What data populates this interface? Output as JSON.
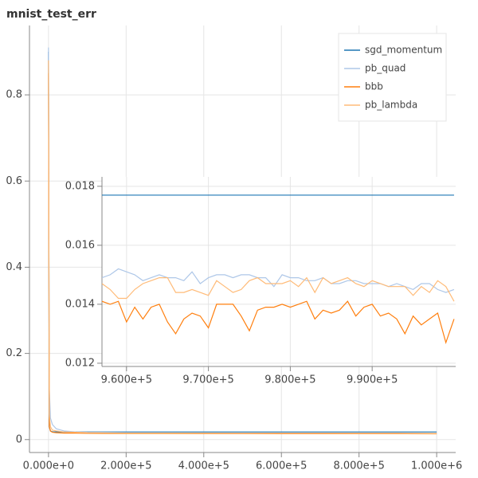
{
  "chart_data": [
    {
      "type": "line",
      "title": "mnist_test_err",
      "x": [
        0,
        2000,
        5000,
        10000,
        20000,
        40000,
        70000,
        100000,
        200000,
        300000,
        400000,
        500000,
        600000,
        700000,
        800000,
        900000,
        1000000
      ],
      "series": [
        {
          "name": "sgd_momentum",
          "color": "#1f77b4",
          "values": [
            0.9,
            0.03,
            0.02,
            0.018,
            0.018,
            0.0178,
            0.0178,
            0.0177,
            0.0177,
            0.0177,
            0.0177,
            0.0177,
            0.0177,
            0.0177,
            0.0177,
            0.0177,
            0.0177
          ]
        },
        {
          "name": "pb_quad",
          "color": "#aec7e8",
          "values": [
            0.91,
            0.12,
            0.05,
            0.035,
            0.025,
            0.02,
            0.018,
            0.017,
            0.016,
            0.0155,
            0.0152,
            0.0151,
            0.015,
            0.015,
            0.015,
            0.015,
            0.0145
          ]
        },
        {
          "name": "bbb",
          "color": "#ff7f0e",
          "values": [
            0.85,
            0.03,
            0.02,
            0.017,
            0.016,
            0.015,
            0.015,
            0.0145,
            0.014,
            0.014,
            0.0138,
            0.0138,
            0.0137,
            0.0137,
            0.0136,
            0.0136,
            0.0135
          ]
        },
        {
          "name": "pb_lambda",
          "color": "#ffbb78",
          "values": [
            0.88,
            0.06,
            0.03,
            0.022,
            0.02,
            0.018,
            0.017,
            0.016,
            0.015,
            0.015,
            0.0148,
            0.0147,
            0.0147,
            0.0147,
            0.0146,
            0.0146,
            0.0141
          ]
        }
      ],
      "xlim": [
        -49000,
        1049000
      ],
      "ylim": [
        -0.03,
        0.961
      ],
      "xticks": [
        {
          "value": 0,
          "label": "0.000e+0"
        },
        {
          "value": 200000,
          "label": "2.000e+5"
        },
        {
          "value": 400000,
          "label": "4.000e+5"
        },
        {
          "value": 600000,
          "label": "6.000e+5"
        },
        {
          "value": 800000,
          "label": "8.000e+5"
        },
        {
          "value": 1000000,
          "label": "1.000e+6"
        }
      ],
      "yticks": [
        0,
        0.2,
        0.4,
        0.6,
        0.8
      ],
      "grid": true,
      "legend": "top-right"
    },
    {
      "type": "line",
      "x": [
        957000,
        958000,
        959000,
        960000,
        961000,
        962000,
        963000,
        964000,
        965000,
        966000,
        967000,
        968000,
        969000,
        970000,
        971000,
        972000,
        973000,
        974000,
        975000,
        976000,
        977000,
        978000,
        979000,
        980000,
        981000,
        982000,
        983000,
        984000,
        985000,
        986000,
        987000,
        988000,
        989000,
        990000,
        991000,
        992000,
        993000,
        994000,
        995000,
        996000,
        997000,
        998000,
        999000,
        1000000
      ],
      "series": [
        {
          "color": "#1f77b4",
          "values": [
            0.0177,
            0.0177,
            0.0177,
            0.0177,
            0.0177,
            0.0177,
            0.0177,
            0.0177,
            0.0177,
            0.0177,
            0.0177,
            0.0177,
            0.0177,
            0.0177,
            0.0177,
            0.0177,
            0.0177,
            0.0177,
            0.0177,
            0.0177,
            0.0177,
            0.0177,
            0.0177,
            0.0177,
            0.0177,
            0.0177,
            0.0177,
            0.0177,
            0.0177,
            0.0177,
            0.0177,
            0.0177,
            0.0177,
            0.0177,
            0.0177,
            0.0177,
            0.0177,
            0.0177,
            0.0177,
            0.0177,
            0.0177,
            0.0177,
            0.0177,
            0.0177
          ]
        },
        {
          "color": "#aec7e8",
          "values": [
            0.0149,
            0.015,
            0.0152,
            0.0151,
            0.015,
            0.0148,
            0.0149,
            0.015,
            0.0149,
            0.0149,
            0.0148,
            0.0151,
            0.0147,
            0.0149,
            0.015,
            0.015,
            0.0149,
            0.015,
            0.015,
            0.0149,
            0.0149,
            0.0146,
            0.015,
            0.0149,
            0.0149,
            0.0148,
            0.0148,
            0.0149,
            0.0147,
            0.0147,
            0.0148,
            0.0148,
            0.0147,
            0.0147,
            0.0147,
            0.0146,
            0.0147,
            0.0146,
            0.0145,
            0.0147,
            0.0147,
            0.0145,
            0.0144,
            0.0145
          ]
        },
        {
          "color": "#ff7f0e",
          "values": [
            0.0141,
            0.014,
            0.0141,
            0.0134,
            0.0139,
            0.0135,
            0.0139,
            0.014,
            0.0134,
            0.013,
            0.0135,
            0.0137,
            0.0136,
            0.0132,
            0.014,
            0.014,
            0.014,
            0.0136,
            0.0131,
            0.0138,
            0.0139,
            0.0139,
            0.014,
            0.0139,
            0.014,
            0.0141,
            0.0135,
            0.0138,
            0.0137,
            0.0138,
            0.0141,
            0.0136,
            0.0139,
            0.014,
            0.0136,
            0.0137,
            0.0135,
            0.013,
            0.0136,
            0.0133,
            0.0135,
            0.0137,
            0.0127,
            0.0135
          ]
        },
        {
          "color": "#ffbb78",
          "values": [
            0.0147,
            0.0145,
            0.0142,
            0.0142,
            0.0145,
            0.0147,
            0.0148,
            0.0149,
            0.0149,
            0.0144,
            0.0144,
            0.0145,
            0.0144,
            0.0143,
            0.0148,
            0.0146,
            0.0144,
            0.0145,
            0.0148,
            0.0149,
            0.0147,
            0.0147,
            0.0147,
            0.0148,
            0.0146,
            0.0149,
            0.0144,
            0.0149,
            0.0147,
            0.0148,
            0.0149,
            0.0147,
            0.0146,
            0.0148,
            0.0147,
            0.0146,
            0.0146,
            0.0146,
            0.0143,
            0.0146,
            0.0144,
            0.0148,
            0.0146,
            0.0141
          ]
        }
      ],
      "xlim": [
        957000,
        1000200
      ],
      "ylim": [
        0.01189,
        0.01832
      ],
      "xticks": [
        {
          "value": 960000,
          "label": "9.600e+5"
        },
        {
          "value": 970000,
          "label": "9.700e+5"
        },
        {
          "value": 980000,
          "label": "9.800e+5"
        },
        {
          "value": 990000,
          "label": "9.900e+5"
        }
      ],
      "yticks": [
        0.012,
        0.014,
        0.016,
        0.018
      ],
      "grid": true
    }
  ]
}
